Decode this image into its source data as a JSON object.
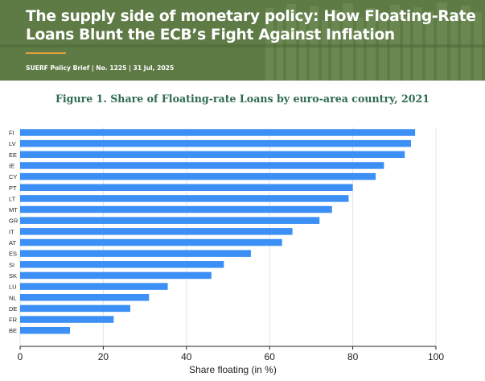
{
  "banner": {
    "title_line1": "The supply side of monetary policy: How Floating-Rate",
    "title_line2": "Loans Blunt the ECB’s Fight Against Inflation",
    "meta": "SUERF Policy Brief | No. 1225 | 31 Jul, 2025",
    "background_color": "#5e7a45",
    "accent_color": "#e8a43a"
  },
  "figure": {
    "caption": "Figure 1. Share of Floating-rate Loans by euro-area country, 2021",
    "caption_color": "#2f6b4f"
  },
  "chart_data": {
    "type": "bar",
    "orientation": "horizontal",
    "categories": [
      "FI",
      "LV",
      "EE",
      "IE",
      "CY",
      "PT",
      "LT",
      "MT",
      "GR",
      "IT",
      "AT",
      "ES",
      "SI",
      "SK",
      "LU",
      "NL",
      "DE",
      "FR",
      "BE"
    ],
    "values": [
      95,
      94,
      92.5,
      87.5,
      85.5,
      80,
      79,
      75,
      72,
      65.5,
      63,
      55.5,
      49,
      46,
      35.5,
      31,
      26.5,
      22.5,
      12
    ],
    "xlabel": "Share floating (in %)",
    "ylabel": "",
    "xlim": [
      0,
      100
    ],
    "xticks": [
      0,
      20,
      40,
      60,
      80,
      100
    ],
    "grid": true,
    "bar_color": "#3b8ff5"
  }
}
